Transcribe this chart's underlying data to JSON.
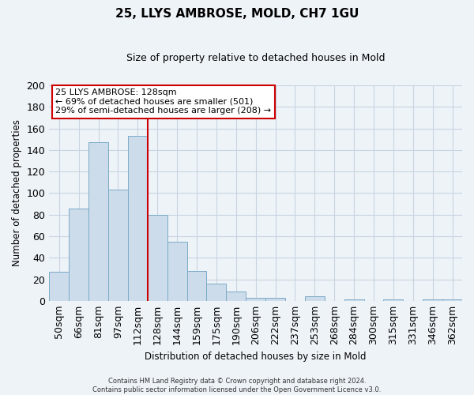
{
  "title": "25, LLYS AMBROSE, MOLD, CH7 1GU",
  "subtitle": "Size of property relative to detached houses in Mold",
  "xlabel": "Distribution of detached houses by size in Mold",
  "ylabel": "Number of detached properties",
  "bar_labels": [
    "50sqm",
    "66sqm",
    "81sqm",
    "97sqm",
    "112sqm",
    "128sqm",
    "144sqm",
    "159sqm",
    "175sqm",
    "190sqm",
    "206sqm",
    "222sqm",
    "237sqm",
    "253sqm",
    "268sqm",
    "284sqm",
    "300sqm",
    "315sqm",
    "331sqm",
    "346sqm",
    "362sqm"
  ],
  "bar_values": [
    27,
    86,
    147,
    103,
    153,
    80,
    55,
    28,
    16,
    9,
    3,
    3,
    0,
    4,
    0,
    1,
    0,
    1,
    0,
    1,
    1
  ],
  "bar_color": "#ccdcea",
  "bar_edge_color": "#7aaac8",
  "vline_x_index": 5,
  "vline_color": "#cc0000",
  "ylim": [
    0,
    200
  ],
  "yticks": [
    0,
    20,
    40,
    60,
    80,
    100,
    120,
    140,
    160,
    180,
    200
  ],
  "annotation_title": "25 LLYS AMBROSE: 128sqm",
  "annotation_line1": "← 69% of detached houses are smaller (501)",
  "annotation_line2": "29% of semi-detached houses are larger (208) →",
  "annotation_box_color": "#ffffff",
  "annotation_box_edge_color": "#cc0000",
  "footer_line1": "Contains HM Land Registry data © Crown copyright and database right 2024.",
  "footer_line2": "Contains public sector information licensed under the Open Government Licence v3.0.",
  "background_color": "#eef3f8",
  "plot_bg_color": "#eef3f8",
  "grid_color": "#c8d4e0"
}
